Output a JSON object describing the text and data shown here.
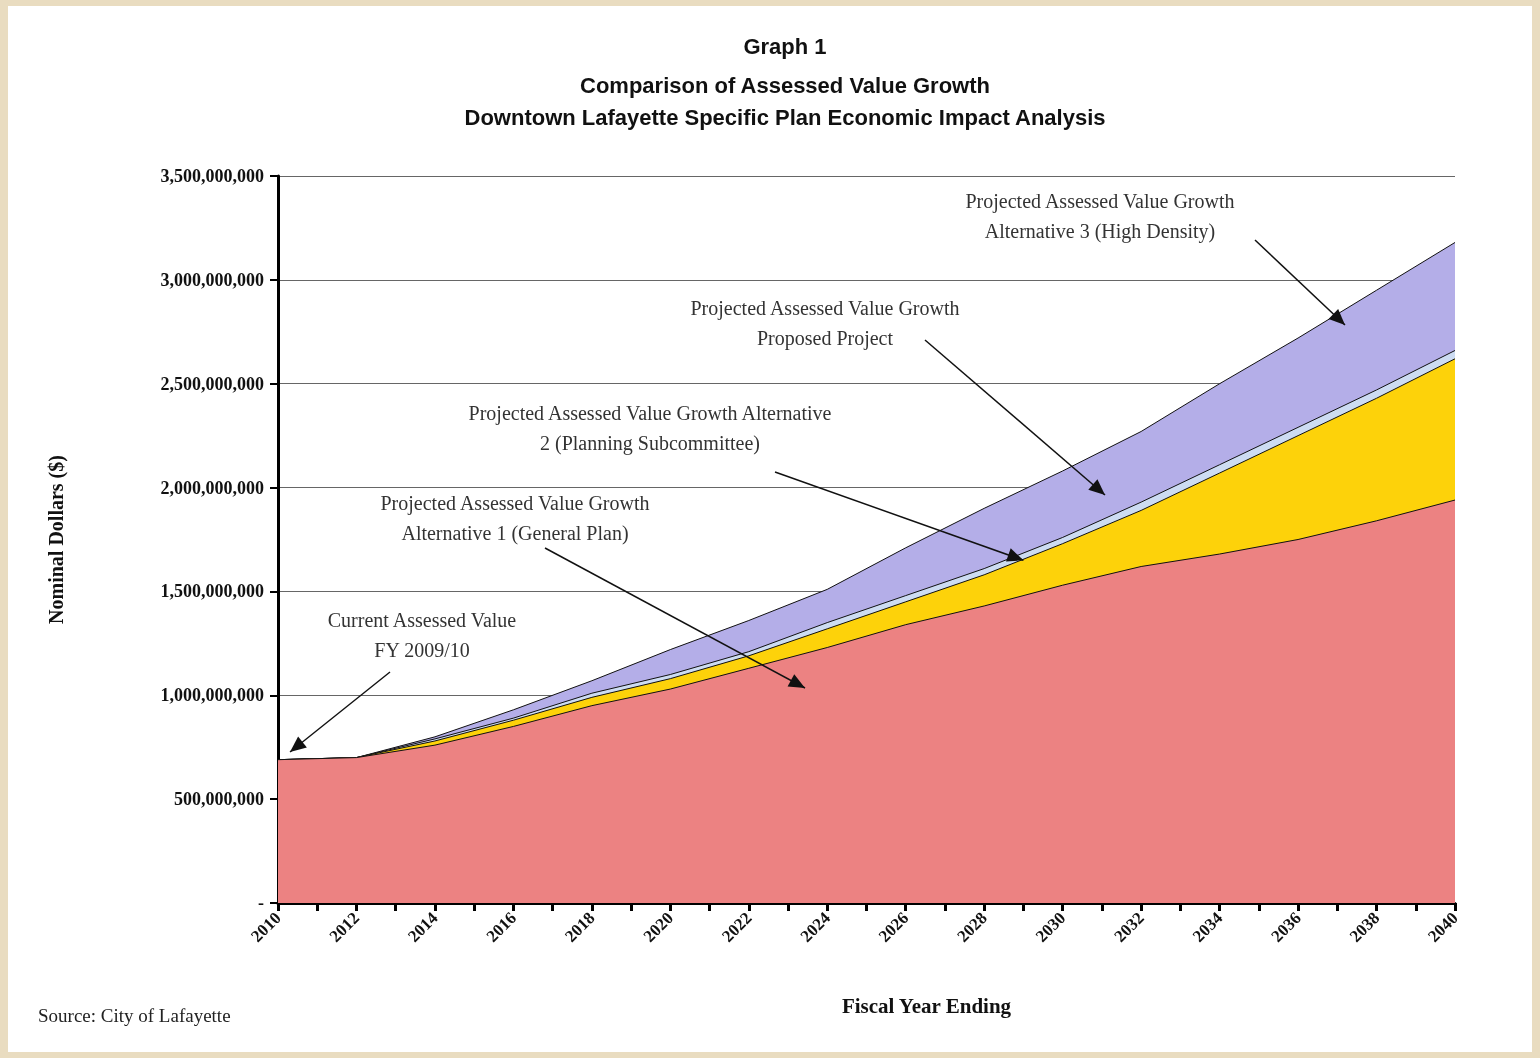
{
  "chart_data": {
    "type": "area",
    "title": "Graph 1",
    "subtitle": "Comparison of Assessed Value Growth\nDowntown Lafayette Specific Plan Economic Impact Analysis",
    "xlabel": "Fiscal Year Ending",
    "ylabel": "Nominal Dollars ($)",
    "x": [
      2010,
      2012,
      2014,
      2016,
      2018,
      2020,
      2022,
      2024,
      2026,
      2028,
      2030,
      2032,
      2034,
      2036,
      2038,
      2040
    ],
    "series": [
      {
        "color": "#b4aee8",
        "values": [
          690000000,
          700000000,
          800000000,
          930000000,
          1070000000,
          1220000000,
          1360000000,
          1510000000,
          1710000000,
          1900000000,
          2080000000,
          2270000000,
          2500000000,
          2720000000,
          2950000000,
          3180000000
        ]
      },
      {
        "color": "#cddcf2",
        "values": [
          690000000,
          700000000,
          790000000,
          890000000,
          1010000000,
          1100000000,
          1210000000,
          1350000000,
          1480000000,
          1610000000,
          1760000000,
          1930000000,
          2110000000,
          2290000000,
          2470000000,
          2660000000
        ]
      },
      {
        "color": "#fdd20a",
        "values": [
          690000000,
          700000000,
          780000000,
          880000000,
          990000000,
          1080000000,
          1190000000,
          1320000000,
          1450000000,
          1580000000,
          1730000000,
          1890000000,
          2070000000,
          2250000000,
          2430000000,
          2620000000
        ]
      },
      {
        "color": "#ec8282",
        "values": [
          690000000,
          700000000,
          760000000,
          850000000,
          950000000,
          1030000000,
          1130000000,
          1230000000,
          1340000000,
          1430000000,
          1530000000,
          1620000000,
          1680000000,
          1750000000,
          1840000000,
          1940000000
        ]
      }
    ],
    "xlim": [
      2010,
      2040
    ],
    "xticks": [
      2010,
      {
        "value": 2011,
        "label": null
      },
      2012,
      {
        "value": 2013,
        "label": null
      },
      2014,
      {
        "value": 2015,
        "label": null
      },
      2016,
      {
        "value": 2017,
        "label": null
      },
      2018,
      {
        "value": 2019,
        "label": null
      },
      2020,
      {
        "value": 2021,
        "label": null
      },
      2022,
      {
        "value": 2023,
        "label": null
      },
      2024,
      {
        "value": 2025,
        "label": null
      },
      2026,
      {
        "value": 2027,
        "label": null
      },
      2028,
      {
        "value": 2029,
        "label": null
      },
      2030,
      {
        "value": 2031,
        "label": null
      },
      2032,
      {
        "value": 2033,
        "label": null
      },
      2034,
      {
        "value": 2035,
        "label": null
      },
      2036,
      {
        "value": 2037,
        "label": null
      },
      2038,
      {
        "value": 2039,
        "label": null
      },
      2040
    ],
    "ylim": [
      0,
      3500000000
    ],
    "yticks": [
      {
        "value": 0,
        "label": "-"
      },
      {
        "value": 500000000,
        "label": "500,000,000"
      },
      {
        "value": 1000000000,
        "label": "1,000,000,000"
      },
      {
        "value": 1500000000,
        "label": "1,500,000,000"
      },
      {
        "value": 2000000000,
        "label": "2,000,000,000"
      },
      {
        "value": 2500000000,
        "label": "2,500,000,000"
      },
      {
        "value": 3000000000,
        "label": "3,000,000,000"
      },
      {
        "value": 3500000000,
        "label": "3,500,000,000"
      }
    ],
    "grid": "y",
    "annotations": [
      "Current Assessed Value\nFY 2009/10",
      "Projected Assessed Value Growth\nAlternative 1 (General Plan)",
      {
        "text": "Projected Assessed Value Growth Alternative\n2 (Planning Subcommittee)",
        "x": 2029,
        "y": 1650000000
      },
      "Projected Assessed Value Growth\nProposed Project",
      "Projected Assessed Value Growth\nAlternative 3 (High Density)",
      "Source: City of Lafayette"
    ]
  }
}
